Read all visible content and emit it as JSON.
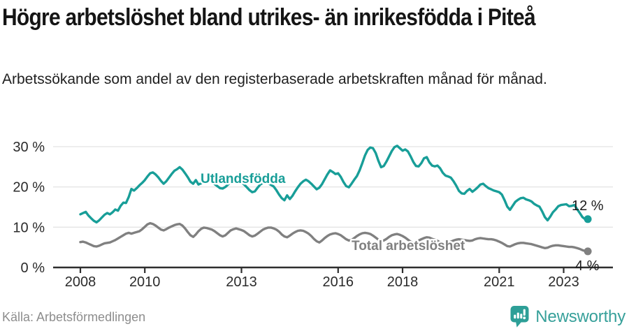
{
  "header": {
    "title": "Högre arbetslöshet bland utrikes- än inrikesfödda i Piteå",
    "subtitle": "Arbetssökande som andel av den registerbaserade arbetskraften månad för månad."
  },
  "footer": {
    "source": "Källa: Arbetsförmedlingen",
    "brand": "Newsworthy",
    "logo_icon": "speech-bubble-bar-chart-icon"
  },
  "colors": {
    "accent_teal": "#189e98",
    "series_gray": "#808080",
    "gridline": "#e4e4e4",
    "axis": "#2e2e2e",
    "text": "#151515",
    "muted_text": "#8d8d8d",
    "logo_teal": "#37a09a"
  },
  "chart_data": {
    "type": "line",
    "title": "",
    "xlabel": "",
    "ylabel": "",
    "x_unit": "month",
    "x_start": "2008-01",
    "x_end": "2023-10",
    "x_start_year": 2008,
    "ylim": [
      0,
      30
    ],
    "grid": true,
    "yticks": [
      {
        "value": 30,
        "label": "30 %"
      },
      {
        "value": 20,
        "label": "20 %"
      },
      {
        "value": 10,
        "label": "10 %"
      },
      {
        "value": 0,
        "label": "0 %"
      }
    ],
    "xticks": [
      {
        "year": 2008,
        "label": "2008"
      },
      {
        "year": 2010,
        "label": "2010"
      },
      {
        "year": 2013,
        "label": "2013"
      },
      {
        "year": 2016,
        "label": "2016"
      },
      {
        "year": 2018,
        "label": "2018"
      },
      {
        "year": 2021,
        "label": "2021"
      },
      {
        "year": 2023,
        "label": "2023"
      }
    ],
    "series": [
      {
        "name": "Utlandsfödda",
        "color": "#189e98",
        "end_label": "12 %",
        "end_value": 12,
        "values": [
          13.2,
          13.5,
          13.8,
          12.9,
          12.2,
          11.6,
          11.2,
          11.7,
          12.4,
          13.1,
          13.5,
          13.2,
          13.7,
          14.4,
          14.1,
          15.3,
          16.1,
          16.0,
          17.5,
          19.5,
          19.1,
          19.7,
          20.4,
          21.0,
          21.7,
          22.6,
          23.4,
          23.6,
          23.1,
          22.4,
          21.5,
          20.8,
          21.4,
          22.3,
          23.2,
          24.0,
          24.4,
          24.9,
          24.3,
          23.4,
          22.4,
          21.3,
          20.8,
          21.7,
          20.6,
          20.9,
          21.4,
          21.2,
          21.5,
          21.2,
          20.7,
          20.2,
          19.7,
          19.6,
          20.0,
          20.6,
          21.2,
          21.4,
          21.0,
          21.3,
          21.1,
          20.6,
          19.9,
          19.2,
          18.7,
          18.9,
          19.8,
          20.6,
          21.0,
          21.3,
          20.9,
          20.5,
          20.1,
          19.2,
          18.1,
          17.2,
          16.7,
          17.9,
          17.0,
          17.8,
          18.9,
          19.9,
          20.8,
          21.4,
          21.8,
          21.4,
          20.8,
          20.1,
          19.4,
          19.8,
          20.7,
          21.9,
          23.1,
          24.1,
          23.7,
          23.2,
          23.4,
          22.5,
          21.2,
          20.2,
          19.9,
          20.8,
          21.8,
          22.7,
          24.1,
          25.9,
          27.8,
          29.2,
          29.8,
          29.6,
          28.4,
          26.5,
          24.9,
          25.2,
          26.3,
          27.6,
          28.9,
          29.9,
          30.2,
          29.6,
          29.0,
          29.3,
          28.8,
          27.6,
          26.2,
          25.2,
          25.1,
          25.9,
          27.1,
          27.4,
          26.1,
          25.3,
          25.1,
          25.3,
          24.6,
          23.5,
          22.8,
          22.6,
          22.3,
          21.4,
          20.3,
          19.0,
          18.4,
          18.3,
          19.0,
          19.5,
          18.8,
          19.3,
          19.9,
          20.6,
          20.8,
          20.2,
          19.7,
          19.4,
          19.1,
          18.9,
          18.7,
          18.1,
          16.7,
          15.1,
          14.3,
          15.3,
          16.3,
          16.8,
          17.2,
          17.3,
          16.9,
          16.7,
          16.4,
          15.8,
          15.4,
          15.1,
          13.9,
          12.5,
          11.7,
          12.6,
          13.7,
          14.4,
          15.2,
          15.5,
          15.6,
          15.7,
          15.2,
          15.3,
          15.5,
          14.5,
          13.5,
          12.5,
          12.0,
          12.0
        ]
      },
      {
        "name": "Total arbetslöshet",
        "color": "#808080",
        "end_label": "4 %",
        "end_value": 4,
        "values": [
          6.3,
          6.4,
          6.2,
          5.9,
          5.6,
          5.3,
          5.2,
          5.4,
          5.7,
          6.0,
          6.1,
          6.2,
          6.5,
          6.8,
          7.2,
          7.6,
          8.0,
          8.4,
          8.6,
          8.4,
          8.6,
          8.8,
          9.0,
          9.5,
          10.1,
          10.7,
          11.0,
          10.8,
          10.4,
          9.9,
          9.4,
          9.2,
          9.5,
          9.9,
          10.2,
          10.5,
          10.7,
          10.8,
          10.4,
          9.7,
          8.8,
          8.0,
          7.6,
          8.2,
          9.0,
          9.6,
          9.9,
          9.8,
          9.6,
          9.4,
          9.0,
          8.5,
          8.0,
          7.7,
          8.0,
          8.6,
          9.2,
          9.5,
          9.7,
          9.5,
          9.3,
          9.0,
          8.5,
          8.0,
          7.7,
          7.9,
          8.4,
          8.9,
          9.4,
          9.7,
          9.9,
          9.9,
          9.7,
          9.4,
          8.9,
          8.2,
          7.7,
          7.5,
          7.9,
          8.4,
          8.8,
          9.1,
          9.2,
          9.1,
          8.8,
          8.4,
          7.8,
          7.1,
          6.5,
          6.2,
          6.7,
          7.3,
          7.8,
          8.2,
          8.4,
          8.5,
          8.3,
          8.0,
          7.5,
          7.0,
          6.7,
          6.8,
          7.3,
          7.8,
          8.2,
          8.5,
          8.6,
          8.5,
          8.3,
          7.9,
          7.4,
          6.9,
          6.6,
          6.7,
          7.1,
          7.6,
          8.0,
          8.2,
          8.3,
          8.1,
          7.8,
          7.4,
          6.9,
          6.4,
          6.1,
          6.3,
          6.7,
          7.0,
          7.3,
          7.5,
          7.4,
          7.1,
          6.9,
          6.6,
          6.2,
          6.0,
          5.9,
          6.1,
          6.4,
          6.7,
          6.9,
          7.0,
          6.9,
          6.8,
          6.7,
          6.6,
          6.7,
          7.0,
          7.2,
          7.3,
          7.2,
          7.1,
          7.0,
          7.0,
          6.9,
          6.7,
          6.4,
          6.1,
          5.7,
          5.3,
          5.2,
          5.5,
          5.8,
          6.0,
          6.1,
          6.1,
          6.0,
          5.9,
          5.8,
          5.6,
          5.4,
          5.2,
          5.0,
          4.8,
          4.9,
          5.2,
          5.4,
          5.5,
          5.5,
          5.4,
          5.3,
          5.2,
          5.1,
          5.1,
          5.0,
          4.8,
          4.6,
          4.3,
          4.1,
          4.0
        ]
      }
    ],
    "legend_position": "inline-labels"
  }
}
